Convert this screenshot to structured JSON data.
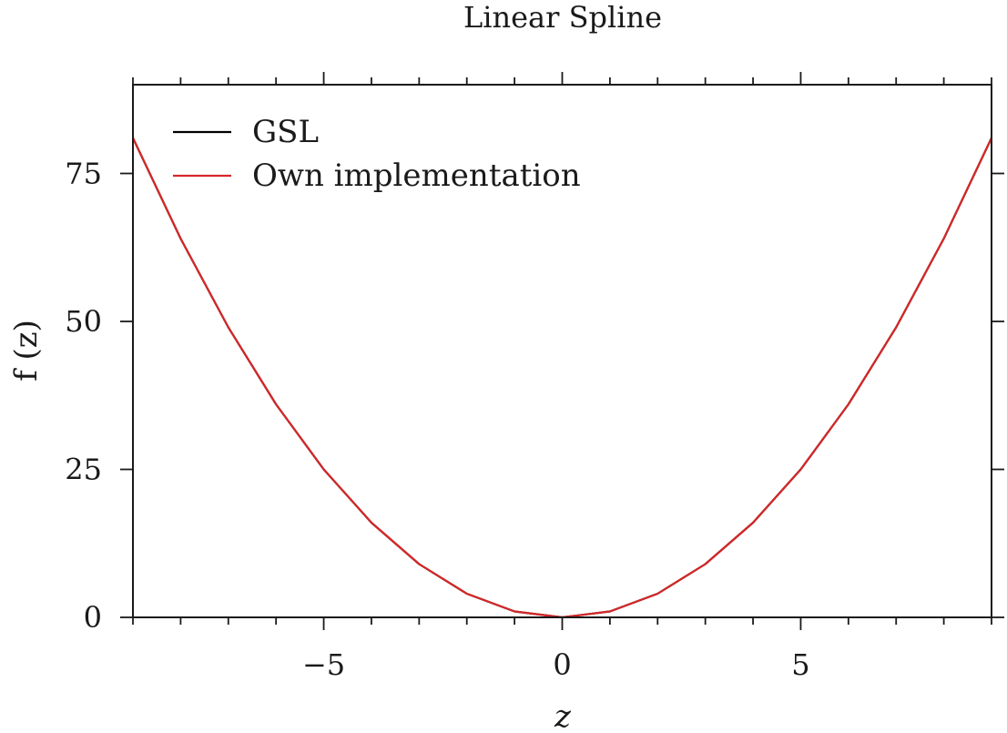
{
  "chart_data": {
    "type": "line",
    "title": "Linear Spline",
    "xlabel": "z",
    "ylabel": "f (z)",
    "xlim": [
      -9,
      9
    ],
    "ylim": [
      0,
      90
    ],
    "xticks": [
      -5,
      0,
      5
    ],
    "xtick_labels": [
      "−5",
      "0",
      "5"
    ],
    "yticks": [
      0,
      25,
      50,
      75
    ],
    "ytick_labels": [
      "0",
      "25",
      "50",
      "75"
    ],
    "x_minor_step": 1,
    "grid": false,
    "legend": {
      "position": "top-left"
    },
    "series": [
      {
        "name": "GSL",
        "color": "#000000",
        "x": [
          -9,
          -8,
          -7,
          -6,
          -5,
          -4,
          -3,
          -2,
          -1,
          0,
          1,
          2,
          3,
          4,
          5,
          6,
          7,
          8,
          9
        ],
        "y": [
          81,
          64,
          49,
          36,
          25,
          16,
          9,
          4,
          1,
          0,
          1,
          4,
          9,
          16,
          25,
          36,
          49,
          64,
          81
        ]
      },
      {
        "name": "Own implementation",
        "color": "#d62728",
        "x": [
          -9,
          -8,
          -7,
          -6,
          -5,
          -4,
          -3,
          -2,
          -1,
          0,
          1,
          2,
          3,
          4,
          5,
          6,
          7,
          8,
          9
        ],
        "y": [
          81,
          64,
          49,
          36,
          25,
          16,
          9,
          4,
          1,
          0,
          1,
          4,
          9,
          16,
          25,
          36,
          49,
          64,
          81
        ]
      }
    ]
  }
}
